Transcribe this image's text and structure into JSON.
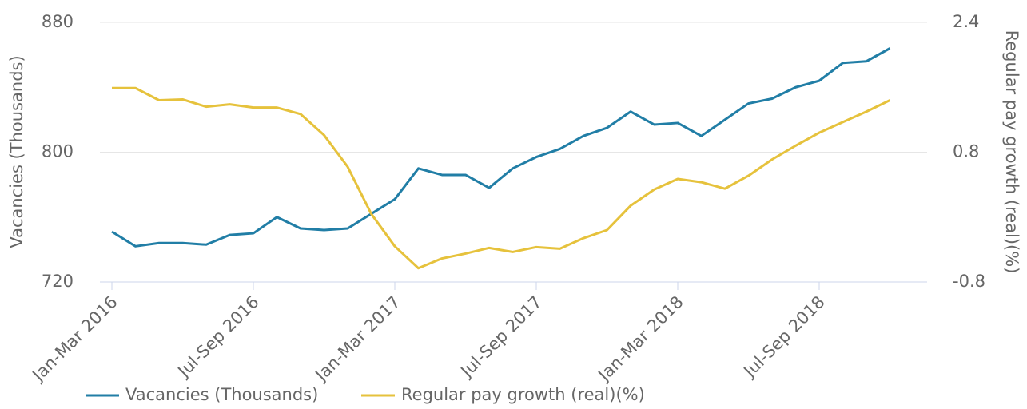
{
  "chart_data": {
    "type": "line",
    "categories": [
      "Jan-Mar 2016",
      null,
      null,
      null,
      null,
      null,
      "Jul-Sep 2016",
      null,
      null,
      null,
      null,
      null,
      "Jan-Mar 2017",
      null,
      null,
      null,
      null,
      null,
      "Jul-Sep 2017",
      null,
      null,
      null,
      null,
      null,
      "Jan-Mar 2018",
      null,
      null,
      null,
      null,
      null,
      "Jul-Sep 2018",
      null,
      null,
      null
    ],
    "ylabel": "Vacancies (Thousands)",
    "y2label": "Regular pay growth (real)(%)",
    "ylim": [
      720,
      880
    ],
    "yticks": [
      720,
      800,
      880
    ],
    "y2lim": [
      -0.8,
      2.4
    ],
    "y2ticks": [
      -0.8,
      0.8,
      2.4
    ],
    "grid": true,
    "legend": "bottom",
    "series": [
      {
        "name": "Vacancies (Thousands)",
        "color": "#217ea6",
        "axis": "y",
        "values": [
          751,
          742,
          744,
          744,
          743,
          749,
          750,
          760,
          753,
          752,
          753,
          762,
          771,
          790,
          786,
          786,
          778,
          790,
          797,
          802,
          810,
          815,
          825,
          817,
          818,
          810,
          820,
          830,
          833,
          840,
          844,
          855,
          856,
          864
        ]
      },
      {
        "name": "Regular pay growth (real)(%)",
        "color": "#e6c23c",
        "axis": "y2",
        "values": [
          1.59,
          1.59,
          1.44,
          1.45,
          1.36,
          1.39,
          1.35,
          1.35,
          1.27,
          1.01,
          0.62,
          0.04,
          -0.36,
          -0.63,
          -0.51,
          -0.45,
          -0.38,
          -0.43,
          -0.37,
          -0.39,
          -0.26,
          -0.16,
          0.14,
          0.34,
          0.47,
          0.43,
          0.35,
          0.51,
          0.71,
          0.88,
          1.04,
          1.17,
          1.3,
          1.44
        ]
      }
    ]
  }
}
